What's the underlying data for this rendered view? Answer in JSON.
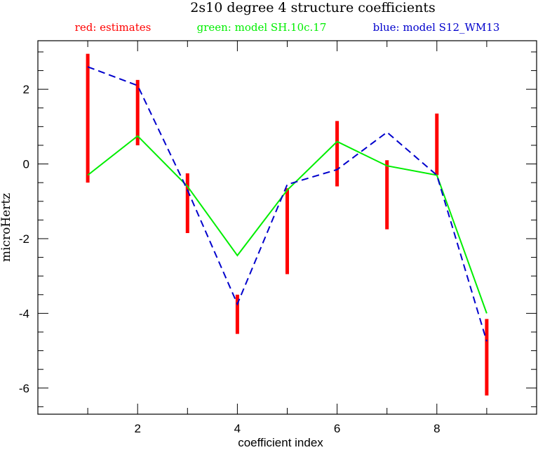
{
  "chart_data": {
    "type": "line",
    "title": "2s10 degree 4 structure coefficients",
    "xlabel": "coefficient index",
    "ylabel": "microHertz",
    "xlim": [
      0,
      10
    ],
    "ylim": [
      -6.7,
      3.3
    ],
    "x_ticks": [
      2,
      4,
      6,
      8
    ],
    "y_ticks": [
      -6,
      -4,
      -2,
      0,
      2
    ],
    "legend": [
      {
        "text": "red: estimates",
        "color": "#ff0000"
      },
      {
        "text": "green: model SH.10c.17",
        "color": "#00ee00"
      },
      {
        "text": "blue: model S12_WM13",
        "color": "#0000cc"
      }
    ],
    "estimates": {
      "name": "estimates",
      "color": "#ff0000",
      "x": [
        1,
        2,
        3,
        4,
        5,
        6,
        7,
        8,
        9
      ],
      "low": [
        -0.5,
        0.5,
        -1.85,
        -4.55,
        -2.95,
        -0.6,
        -1.75,
        -0.3,
        -6.2
      ],
      "high": [
        2.95,
        2.25,
        -0.25,
        -3.5,
        -0.65,
        1.15,
        0.1,
        1.35,
        -4.15
      ]
    },
    "series": [
      {
        "name": "model SH.10c.17",
        "color": "#00ee00",
        "dash": false,
        "x": [
          1,
          2,
          3,
          4,
          5,
          6,
          7,
          8,
          9
        ],
        "values": [
          -0.3,
          0.75,
          -0.6,
          -2.45,
          -0.7,
          0.6,
          -0.05,
          -0.3,
          -4.0
        ]
      },
      {
        "name": "model S12_WM13",
        "color": "#0000cc",
        "dash": true,
        "x": [
          1,
          2,
          3,
          4,
          5,
          6,
          7,
          8,
          9
        ],
        "values": [
          2.6,
          2.1,
          -0.7,
          -3.75,
          -0.55,
          -0.15,
          0.85,
          -0.3,
          -4.75
        ]
      }
    ]
  }
}
